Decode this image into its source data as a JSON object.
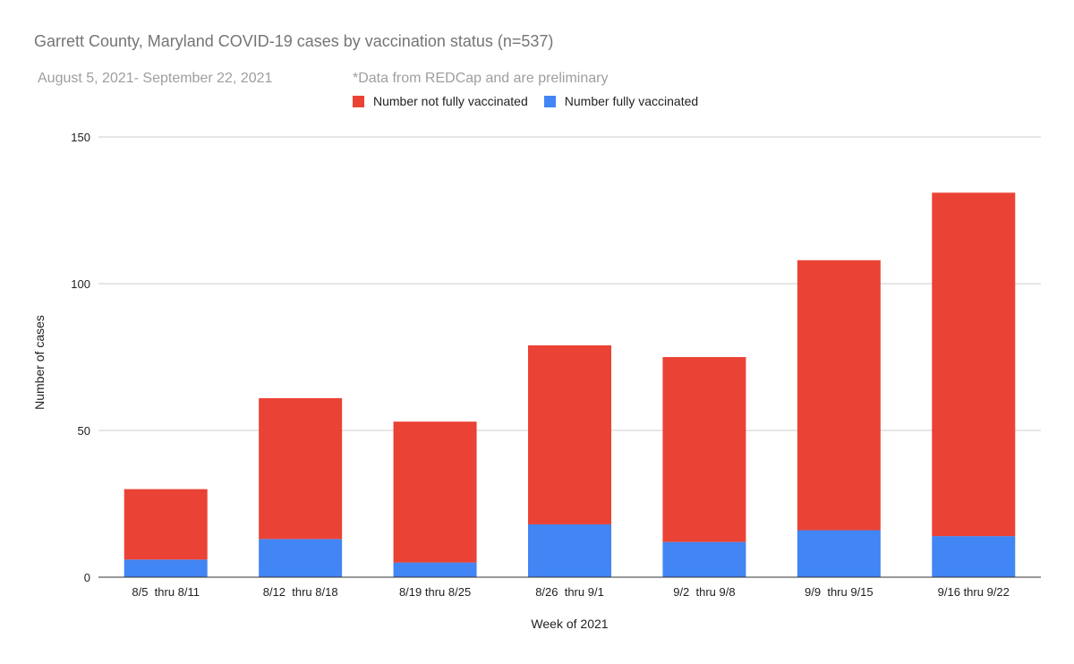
{
  "chart_data": {
    "type": "bar",
    "stacked": true,
    "title": "Garrett County, Maryland COVID-19 cases by vaccination status (n=537)",
    "subtitle": "August 5, 2021- September 22, 2021",
    "annotation": "*Data from REDCap and are preliminary",
    "xlabel": "Week of 2021",
    "ylabel": "Number of cases",
    "ylim": [
      0,
      150
    ],
    "yticks": [
      0,
      50,
      100,
      150
    ],
    "grid": true,
    "legend_position": "top",
    "categories": [
      "8/5  thru 8/11",
      "8/12  thru 8/18",
      "8/19 thru 8/25",
      "8/26  thru 9/1",
      "9/2  thru 9/8",
      "9/9  thru 9/15",
      "9/16 thru 9/22"
    ],
    "series": [
      {
        "name": "Number fully vaccinated",
        "color": "#4285f4",
        "values": [
          6,
          13,
          5,
          18,
          12,
          16,
          14
        ]
      },
      {
        "name": "Number not fully vaccinated",
        "color": "#ea4335",
        "values": [
          24,
          48,
          48,
          61,
          63,
          92,
          117
        ]
      }
    ],
    "legend_order": [
      1,
      0
    ]
  }
}
